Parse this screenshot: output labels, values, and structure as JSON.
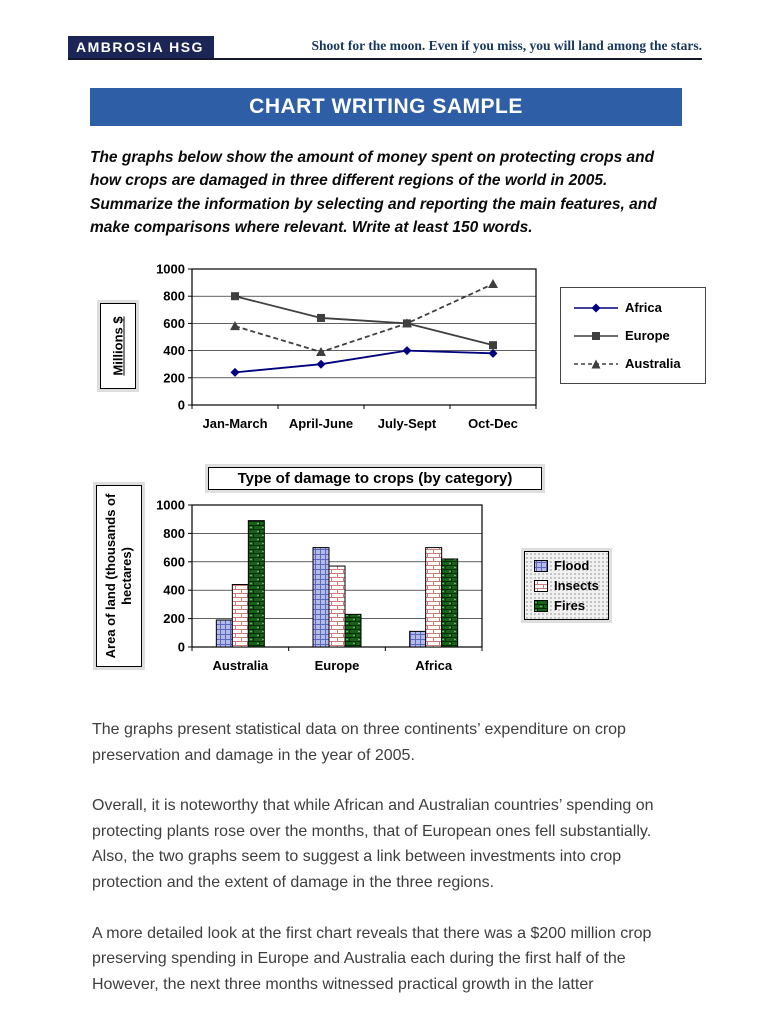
{
  "header": {
    "logo": "AMBROSIA HSG",
    "tagline": "Shoot for the moon. Even if you miss, you will land among the stars."
  },
  "title_banner": "CHART WRITING SAMPLE",
  "prompt": "The graphs below show the amount of money spent on protecting crops and how crops are damaged in three different regions of the world in 2005. Summarize the information by selecting and reporting the main features, and make comparisons where relevant. Write at least 150 words.",
  "chart_data": [
    {
      "type": "line",
      "title": "",
      "ylabel": "Millions $",
      "xlabel": "",
      "categories": [
        "Jan-March",
        "April-June",
        "July-Sept",
        "Oct-Dec"
      ],
      "ylim": [
        0,
        1000
      ],
      "ytick_step": 200,
      "grid": true,
      "legend_position": "right",
      "series": [
        {
          "name": "Africa",
          "values": [
            240,
            300,
            400,
            380
          ],
          "color": "#00007f",
          "marker": "diamond",
          "dash": "solid"
        },
        {
          "name": "Europe",
          "values": [
            800,
            640,
            600,
            440
          ],
          "color": "#3f3f3f",
          "marker": "square",
          "dash": "solid"
        },
        {
          "name": "Australia",
          "values": [
            580,
            390,
            600,
            890
          ],
          "color": "#3f3f3f",
          "marker": "triangle",
          "dash": "dashed"
        }
      ]
    },
    {
      "type": "bar",
      "title": "Type of damage to crops (by category)",
      "ylabel": "Area of land (thousands of hectares)",
      "xlabel": "",
      "categories": [
        "Australia",
        "Europe",
        "Africa"
      ],
      "ylim": [
        0,
        1000
      ],
      "ytick_step": 200,
      "grid": true,
      "legend_position": "right",
      "series": [
        {
          "name": "Flood",
          "values": [
            190,
            700,
            110
          ],
          "color": "#b3bce8",
          "pattern": "grid"
        },
        {
          "name": "Insects",
          "values": [
            440,
            570,
            700
          ],
          "color": "#ffffff",
          "pattern": "brick"
        },
        {
          "name": "Fires",
          "values": [
            890,
            230,
            620
          ],
          "color": "#156415",
          "pattern": "brick-dark"
        }
      ]
    }
  ],
  "body_paragraphs": [
    "The graphs present statistical data on three continents’ expenditure on crop preservation and damage in the year of 2005.",
    "Overall, it is noteworthy that while African and Australian countries’ spending on protecting plants rose over the months, that of European ones fell substantially. Also, the two graphs seem to suggest a link between investments into crop protection and the extent of damage in the three regions.",
    "A more detailed look at the first chart reveals that there was a $200 million crop preserving spending in Europe and Australia each during the first half of the However, the next three months witnessed practical growth in the latter"
  ]
}
